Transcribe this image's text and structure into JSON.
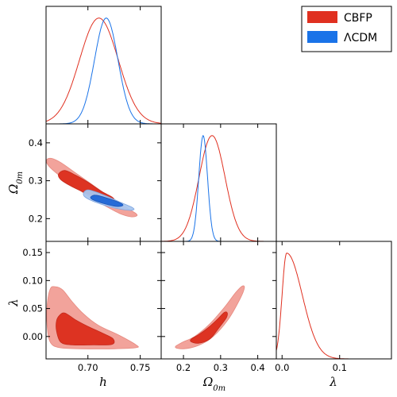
{
  "chart_data": {
    "type": "corner",
    "params": [
      "h",
      "Ω0m",
      "λ"
    ],
    "legend": {
      "position": "top-right",
      "entries": [
        {
          "label": "CBFP",
          "color": "#e03020"
        },
        {
          "label": "ΛCDM",
          "color": "#1a73e8"
        }
      ]
    },
    "colors": {
      "CBFP_line": "#e03020",
      "CBFP_inner": "#dd3322",
      "CBFP_outer": "#f2a39b",
      "LCDM_line": "#1a73e8",
      "LCDM_inner": "#1f66d6",
      "LCDM_outer": "#a9c6ee"
    },
    "axes": {
      "h": {
        "range": [
          0.66,
          0.77
        ],
        "ticks": [
          "0.70",
          "0.75"
        ],
        "tick_values": [
          0.7,
          0.75
        ],
        "label": "h"
      },
      "Om": {
        "range": [
          0.14,
          0.45
        ],
        "ticks": [
          "0.2",
          "0.3",
          "0.4"
        ],
        "tick_values": [
          0.2,
          0.3,
          0.4
        ],
        "label": "Ω0m"
      },
      "lam": {
        "range": [
          -0.04,
          0.17
        ],
        "ticks": [
          "0.00",
          "0.05",
          "0.10",
          "0.15"
        ],
        "tick_values": [
          0.0,
          0.05,
          0.1,
          0.15
        ],
        "label": "λ"
      },
      "lam_x": {
        "range": [
          -0.01,
          0.19
        ],
        "ticks": [
          "0.0",
          "0.1"
        ],
        "tick_values": [
          0.0,
          0.1
        ],
        "label": "λ"
      }
    },
    "marginals": [
      {
        "param": "h",
        "series": "CBFP",
        "distribution": "gaussian",
        "mean": 0.7105,
        "sigma": 0.0185
      },
      {
        "param": "h",
        "series": "ΛCDM",
        "distribution": "gaussian",
        "mean": 0.7175,
        "sigma": 0.0112
      },
      {
        "param": "Ω0m",
        "series": "CBFP",
        "distribution": "gaussian",
        "mean": 0.277,
        "sigma": 0.035
      },
      {
        "param": "Ω0m",
        "series": "ΛCDM",
        "distribution": "gaussian",
        "mean": 0.253,
        "sigma": 0.0118
      },
      {
        "param": "λ",
        "series": "CBFP",
        "distribution": "skewed",
        "mode": 0.008,
        "sigma_left": 0.008,
        "sigma_right": 0.027
      }
    ],
    "contours_2d": [
      {
        "panel": "Ω0m vs h",
        "series": "CBFP",
        "level": "95%",
        "points": [
          [
            0.6605,
            0.355
          ],
          [
            0.665,
            0.359
          ],
          [
            0.674,
            0.348
          ],
          [
            0.688,
            0.321
          ],
          [
            0.705,
            0.288
          ],
          [
            0.723,
            0.253
          ],
          [
            0.738,
            0.227
          ],
          [
            0.746,
            0.213
          ],
          [
            0.7465,
            0.207
          ],
          [
            0.741,
            0.205
          ],
          [
            0.73,
            0.214
          ],
          [
            0.715,
            0.236
          ],
          [
            0.698,
            0.264
          ],
          [
            0.682,
            0.295
          ],
          [
            0.669,
            0.322
          ],
          [
            0.662,
            0.341
          ]
        ]
      },
      {
        "panel": "Ω0m vs h",
        "series": "CBFP",
        "level": "68%",
        "points": [
          [
            0.672,
            0.318
          ],
          [
            0.678,
            0.327
          ],
          [
            0.688,
            0.315
          ],
          [
            0.7,
            0.296
          ],
          [
            0.713,
            0.272
          ],
          [
            0.723,
            0.257
          ],
          [
            0.7255,
            0.246
          ],
          [
            0.719,
            0.244
          ],
          [
            0.708,
            0.256
          ],
          [
            0.695,
            0.271
          ],
          [
            0.683,
            0.287
          ],
          [
            0.674,
            0.303
          ]
        ]
      },
      {
        "panel": "Ω0m vs h",
        "series": "ΛCDM",
        "level": "95%",
        "points": [
          [
            0.696,
            0.269
          ],
          [
            0.7,
            0.276
          ],
          [
            0.708,
            0.27
          ],
          [
            0.72,
            0.257
          ],
          [
            0.732,
            0.242
          ],
          [
            0.742,
            0.23
          ],
          [
            0.744,
            0.224
          ],
          [
            0.74,
            0.222
          ],
          [
            0.729,
            0.226
          ],
          [
            0.715,
            0.236
          ],
          [
            0.703,
            0.248
          ],
          [
            0.6965,
            0.259
          ]
        ]
      },
      {
        "panel": "Ω0m vs h",
        "series": "ΛCDM",
        "level": "68%",
        "points": [
          [
            0.703,
            0.258
          ],
          [
            0.707,
            0.262
          ],
          [
            0.715,
            0.257
          ],
          [
            0.726,
            0.247
          ],
          [
            0.733,
            0.238
          ],
          [
            0.732,
            0.233
          ],
          [
            0.725,
            0.233
          ],
          [
            0.715,
            0.24
          ],
          [
            0.707,
            0.247
          ],
          [
            0.703,
            0.253
          ]
        ]
      },
      {
        "panel": "λ vs h",
        "series": "CBFP",
        "level": "95%",
        "points": [
          [
            0.664,
            0.085
          ],
          [
            0.669,
            0.089
          ],
          [
            0.676,
            0.083
          ],
          [
            0.685,
            0.062
          ],
          [
            0.696,
            0.04
          ],
          [
            0.71,
            0.02
          ],
          [
            0.73,
            0.002
          ],
          [
            0.746,
            -0.015
          ],
          [
            0.746,
            -0.02
          ],
          [
            0.725,
            -0.022
          ],
          [
            0.695,
            -0.022
          ],
          [
            0.673,
            -0.02
          ],
          [
            0.664,
            -0.01
          ],
          [
            0.661,
            0.02
          ],
          [
            0.661,
            0.055
          ]
        ]
      },
      {
        "panel": "λ vs h",
        "series": "CBFP",
        "level": "68%",
        "points": [
          [
            0.673,
            0.038
          ],
          [
            0.678,
            0.042
          ],
          [
            0.688,
            0.03
          ],
          [
            0.7,
            0.018
          ],
          [
            0.714,
            0.006
          ],
          [
            0.724,
            -0.004
          ],
          [
            0.723,
            -0.014
          ],
          [
            0.705,
            -0.015
          ],
          [
            0.685,
            -0.015
          ],
          [
            0.674,
            -0.01
          ],
          [
            0.67,
            0.01
          ],
          [
            0.67,
            0.028
          ]
        ]
      },
      {
        "panel": "λ vs Ω0m",
        "series": "CBFP",
        "level": "95%",
        "points": [
          [
            0.178,
            -0.019
          ],
          [
            0.2,
            -0.022
          ],
          [
            0.24,
            -0.016
          ],
          [
            0.28,
            0.0
          ],
          [
            0.32,
            0.03
          ],
          [
            0.353,
            0.068
          ],
          [
            0.364,
            0.087
          ],
          [
            0.358,
            0.09
          ],
          [
            0.34,
            0.078
          ],
          [
            0.31,
            0.052
          ],
          [
            0.27,
            0.022
          ],
          [
            0.23,
            0.0
          ],
          [
            0.195,
            -0.011
          ]
        ]
      },
      {
        "panel": "λ vs Ω0m",
        "series": "CBFP",
        "level": "68%",
        "points": [
          [
            0.22,
            -0.009
          ],
          [
            0.24,
            -0.012
          ],
          [
            0.27,
            -0.005
          ],
          [
            0.295,
            0.015
          ],
          [
            0.315,
            0.033
          ],
          [
            0.318,
            0.042
          ],
          [
            0.31,
            0.043
          ],
          [
            0.29,
            0.03
          ],
          [
            0.265,
            0.015
          ],
          [
            0.24,
            0.003
          ],
          [
            0.222,
            -0.004
          ]
        ]
      }
    ]
  }
}
